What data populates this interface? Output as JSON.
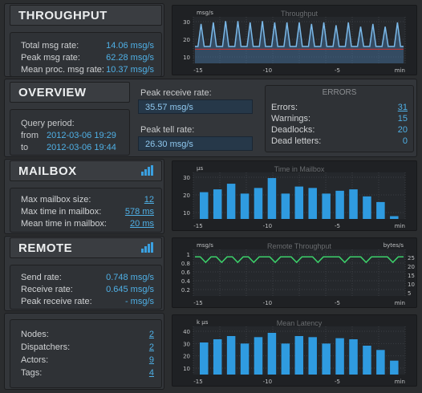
{
  "throughput": {
    "title": "THROUGHPUT",
    "rows": [
      {
        "label": "Total msg rate:",
        "value": "14.06 msg/s"
      },
      {
        "label": "Peak msg rate:",
        "value": "62.28 msg/s"
      },
      {
        "label": "Mean proc. msg rate:",
        "value": "10.37 msg/s"
      }
    ]
  },
  "overview": {
    "title": "OVERVIEW",
    "query_label": "Query period:",
    "from_label": "from",
    "from_value": "2012-03-06 19:29",
    "to_label": "to",
    "to_value": "2012-03-06 19:44",
    "peak_receive_label": "Peak receive rate:",
    "peak_receive_value": "35.57 msg/s",
    "peak_tell_label": "Peak tell rate:",
    "peak_tell_value": "26.30 msg/s"
  },
  "errors": {
    "title": "ERRORS",
    "rows": [
      {
        "label": "Errors:",
        "value": "31"
      },
      {
        "label": "Warnings:",
        "value": "15"
      },
      {
        "label": "Deadlocks:",
        "value": "20"
      },
      {
        "label": "Dead letters:",
        "value": "0"
      }
    ]
  },
  "mailbox": {
    "title": "MAILBOX",
    "rows": [
      {
        "label": "Max mailbox size:",
        "value": "12"
      },
      {
        "label": "Max time in mailbox:",
        "value": "578 ms"
      },
      {
        "label": "Mean time in mailbox:",
        "value": "20 ms"
      }
    ]
  },
  "remote": {
    "title": "REMOTE",
    "rows": [
      {
        "label": "Send rate:",
        "value": "0.748 msg/s"
      },
      {
        "label": "Receive rate:",
        "value": "0.645 msg/s"
      },
      {
        "label": "Peak receive rate:",
        "value": "- msg/s"
      }
    ]
  },
  "stats": {
    "rows": [
      {
        "label": "Nodes:",
        "value": "2"
      },
      {
        "label": "Dispatchers:",
        "value": "2"
      },
      {
        "label": "Actors:",
        "value": "9"
      },
      {
        "label": "Tags:",
        "value": "4"
      }
    ]
  },
  "colors": {
    "accent": "#4fb0e6",
    "line_blue": "#7ab8e8",
    "line_red": "#d03030",
    "line_green": "#3cd06a",
    "bar": "#2f9be0"
  },
  "chart_data": [
    {
      "type": "line",
      "title": "Throughput",
      "unit_label": "msg/s",
      "y_ticks": [
        "30",
        "20",
        "10"
      ],
      "x_ticks": [
        "-15",
        "-10",
        "-5",
        "min"
      ],
      "xlim": [
        -15,
        0
      ],
      "ylim": [
        0,
        33
      ],
      "series": [
        {
          "values": [
            12,
            12,
            28,
            12,
            12,
            12,
            29,
            12,
            12,
            12,
            30,
            12,
            12,
            12,
            30,
            12,
            12,
            12,
            29,
            12,
            12,
            12,
            30,
            12,
            12,
            12,
            29,
            12,
            12,
            12,
            29,
            12,
            12,
            12,
            29,
            12,
            12,
            12,
            28,
            12,
            12,
            12,
            29,
            12,
            12,
            12,
            27,
            12,
            12,
            12,
            29,
            12,
            12,
            12,
            26,
            12,
            12,
            12,
            28,
            12,
            12,
            12,
            26,
            12,
            12,
            12,
            29,
            12,
            12
          ]
        },
        {
          "values": [
            10,
            10,
            10,
            10,
            10,
            10,
            10,
            10,
            10,
            10,
            10,
            10,
            10,
            10,
            10,
            10,
            10,
            10,
            10,
            10,
            10,
            10,
            10,
            10,
            10,
            10,
            10,
            10,
            10,
            10,
            10,
            10,
            10,
            10,
            10,
            10,
            10,
            10,
            10,
            10,
            10,
            10,
            10,
            10,
            10,
            10,
            10,
            10,
            10,
            10,
            10,
            10,
            10,
            10,
            10,
            10,
            10,
            10,
            10,
            10,
            10,
            10,
            10,
            10,
            10,
            10,
            10,
            10,
            10
          ]
        }
      ]
    },
    {
      "type": "bar",
      "title": "Time in Mailbox",
      "unit_label": "µs",
      "y_ticks": [
        "30",
        "20",
        "10"
      ],
      "x_ticks": [
        "-15",
        "-10",
        "-5",
        "min"
      ],
      "ylim": [
        0,
        33
      ],
      "values": [
        19,
        21,
        25,
        18,
        22,
        29,
        18,
        23,
        22,
        18,
        20,
        21,
        16,
        12,
        2
      ]
    },
    {
      "type": "line",
      "title": "Remote Throughput",
      "unit_label": "msg/s",
      "unit_label_right": "bytes/s",
      "y_ticks": [
        "1",
        "0.8",
        "0.6",
        "0.4",
        "0.2"
      ],
      "y_ticks_right": [
        "25",
        "20",
        "15",
        "10",
        "5"
      ],
      "x_ticks": [
        "-15",
        "-10",
        "-5",
        "min"
      ],
      "ylim": [
        0,
        1
      ],
      "series": [
        {
          "values": [
            0.84,
            0.84,
            0.72,
            0.84,
            0.84,
            0.72,
            0.84,
            0.84,
            0.72,
            0.84,
            0.84,
            0.72,
            0.84,
            0.84,
            0.84,
            0.72,
            0.84,
            0.84,
            0.84,
            0.72,
            0.84,
            0.84,
            0.84,
            0.72,
            0.84,
            0.84,
            0.84,
            0.84,
            0.72,
            0.84,
            0.84,
            0.84,
            0.72,
            0.84,
            0.84,
            0.84,
            0.84,
            0.72,
            0.84,
            0.84
          ]
        }
      ]
    },
    {
      "type": "bar",
      "title": "Mean Latency",
      "unit_label": "k µs",
      "y_ticks": [
        "40",
        "30",
        "20",
        "10"
      ],
      "x_ticks": [
        "-15",
        "-10",
        "-5",
        "min"
      ],
      "ylim": [
        0,
        45
      ],
      "values": [
        30,
        33,
        36,
        29,
        35,
        39,
        29,
        36,
        35,
        29,
        34,
        33,
        27,
        23,
        13
      ]
    }
  ]
}
